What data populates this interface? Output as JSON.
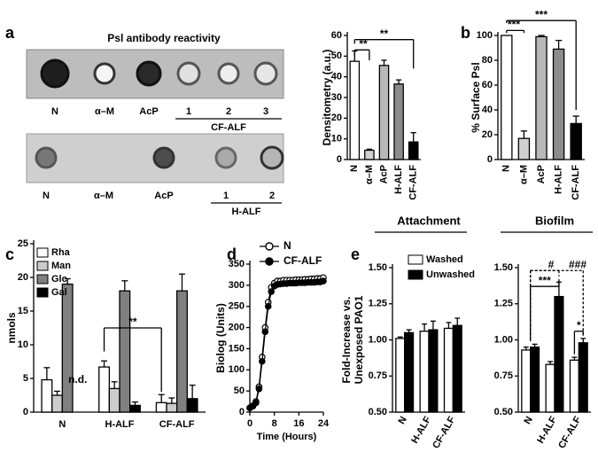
{
  "panels": [
    "a",
    "b",
    "c",
    "d",
    "e"
  ],
  "blots": [
    {
      "title": "Psl antibody reactivity",
      "labels": [
        "N",
        "α–M",
        "AcP",
        "1",
        "2",
        "3"
      ],
      "group": "CF-ALF"
    },
    {
      "labels": [
        "N",
        "α–M",
        "AcP",
        "1",
        "2"
      ],
      "group": "H-ALF"
    }
  ],
  "chart_data": [
    {
      "type": "bar",
      "y_label": "Densitometry (a.u.)",
      "categories": [
        "N",
        "α–M",
        "AcP",
        "H-ALF",
        "CF-ALF"
      ],
      "values": [
        47.5,
        4.5,
        45.5,
        36.5,
        8.5
      ],
      "errors": [
        5,
        0.5,
        2.5,
        2,
        4.5
      ],
      "colors": [
        "#ffffff",
        "#d0d0d0",
        "#b8b8b8",
        "#8c8c8c",
        "#000000"
      ],
      "ylim": [
        0,
        60
      ],
      "yticks": [
        0,
        10,
        20,
        30,
        40,
        50,
        60
      ],
      "annotations": [
        "**",
        "**"
      ]
    },
    {
      "type": "bar",
      "y_label": "% Surface Psl",
      "categories": [
        "N",
        "α–M",
        "AcP",
        "H-ALF",
        "CF-ALF"
      ],
      "values": [
        100,
        17,
        99,
        89,
        29
      ],
      "errors": [
        0,
        6,
        1,
        7,
        6
      ],
      "colors": [
        "#ffffff",
        "#d0d0d0",
        "#b8b8b8",
        "#8c8c8c",
        "#000000"
      ],
      "ylim": [
        0,
        100
      ],
      "yticks": [
        0,
        20,
        40,
        60,
        80,
        100
      ],
      "annotations": [
        "***",
        "***"
      ]
    },
    {
      "type": "bar",
      "y_label": "nmols",
      "categories": [
        "N",
        "H-ALF",
        "CF-ALF"
      ],
      "series": [
        {
          "name": "Rha",
          "color": "#ffffff",
          "values": [
            4.8,
            6.7,
            1.4
          ],
          "errors": [
            1.8,
            0.9,
            1.2
          ]
        },
        {
          "name": "Man",
          "color": "#cccccc",
          "values": [
            2.5,
            3.5,
            1.3
          ],
          "errors": [
            0.6,
            1.0,
            0.8
          ]
        },
        {
          "name": "Glc",
          "color": "#808080",
          "values": [
            19,
            18,
            18
          ],
          "errors": [
            0.8,
            1.5,
            2.5
          ]
        },
        {
          "name": "Gal",
          "color": "#000000",
          "values": [
            null,
            1,
            2
          ],
          "errors": [
            null,
            0.5,
            2
          ]
        }
      ],
      "ylim": [
        0,
        25
      ],
      "yticks": [
        0,
        5,
        10,
        15,
        20,
        25
      ],
      "annotations": [
        "n.d.",
        "**"
      ]
    },
    {
      "type": "line",
      "y_label": "Biolog (Units)",
      "x_label": "Time (Hours)",
      "x": [
        0,
        1,
        2,
        3,
        4,
        5,
        6,
        7,
        8,
        9,
        10,
        11,
        12,
        13,
        14,
        15,
        16,
        17,
        18,
        19,
        20,
        21,
        22,
        23,
        24
      ],
      "series": [
        {
          "name": "N",
          "color": "#000000",
          "marker": "open",
          "values": [
            10,
            15,
            25,
            60,
            130,
            200,
            260,
            295,
            305,
            310,
            310,
            312,
            312,
            312,
            312,
            313,
            313,
            313,
            314,
            314,
            315,
            315,
            316,
            316,
            318
          ]
        },
        {
          "name": "CF-ALF",
          "color": "#000000",
          "marker": "filled",
          "values": [
            10,
            14,
            22,
            55,
            120,
            190,
            250,
            285,
            298,
            302,
            303,
            304,
            304,
            305,
            305,
            305,
            306,
            306,
            306,
            307,
            307,
            307,
            308,
            308,
            310
          ]
        }
      ],
      "xlim": [
        0,
        24
      ],
      "xticks": [
        0,
        8,
        16,
        24
      ],
      "ylim": [
        0,
        350
      ],
      "yticks": [
        0,
        50,
        100,
        150,
        200,
        250,
        300,
        350
      ]
    },
    {
      "type": "bar",
      "title": "Attachment",
      "y_label": [
        "Fold-Increase vs.",
        "Unexposed PAO1"
      ],
      "categories": [
        "N",
        "H-ALF",
        "CF-ALF"
      ],
      "series": [
        {
          "name": "Washed",
          "color": "#ffffff",
          "values": [
            1.01,
            1.06,
            1.08
          ],
          "errors": [
            0.01,
            0.05,
            0.04
          ]
        },
        {
          "name": "Unwashed",
          "color": "#000000",
          "values": [
            1.05,
            1.07,
            1.1
          ],
          "errors": [
            0.02,
            0.06,
            0.05
          ]
        }
      ],
      "ylim": [
        0.5,
        1.5
      ],
      "yticks": [
        {
          "value": 0.5,
          "label": "0.50"
        },
        0.75,
        {
          "value": 1,
          "label": "1.00"
        },
        1.25,
        {
          "value": 1.5,
          "label": "1.50"
        }
      ]
    },
    {
      "type": "bar",
      "title": "Biofilm",
      "categories": [
        "N",
        "H-ALF",
        "CF-ALF"
      ],
      "series": [
        {
          "color": "#ffffff",
          "values": [
            0.93,
            0.83,
            0.86
          ],
          "errors": [
            0.02,
            0.02,
            0.02
          ]
        },
        {
          "color": "#000000",
          "values": [
            0.95,
            1.3,
            0.98
          ],
          "errors": [
            0.02,
            0.1,
            0.03
          ]
        }
      ],
      "ylim": [
        0.5,
        1.5
      ],
      "yticks": [
        {
          "value": 0.5,
          "label": "0.50"
        },
        0.75,
        {
          "value": 1,
          "label": "1.00"
        },
        1.25,
        {
          "value": 1.5,
          "label": "1.50"
        }
      ],
      "annotations": [
        "#",
        "###",
        "***",
        "*"
      ]
    }
  ]
}
